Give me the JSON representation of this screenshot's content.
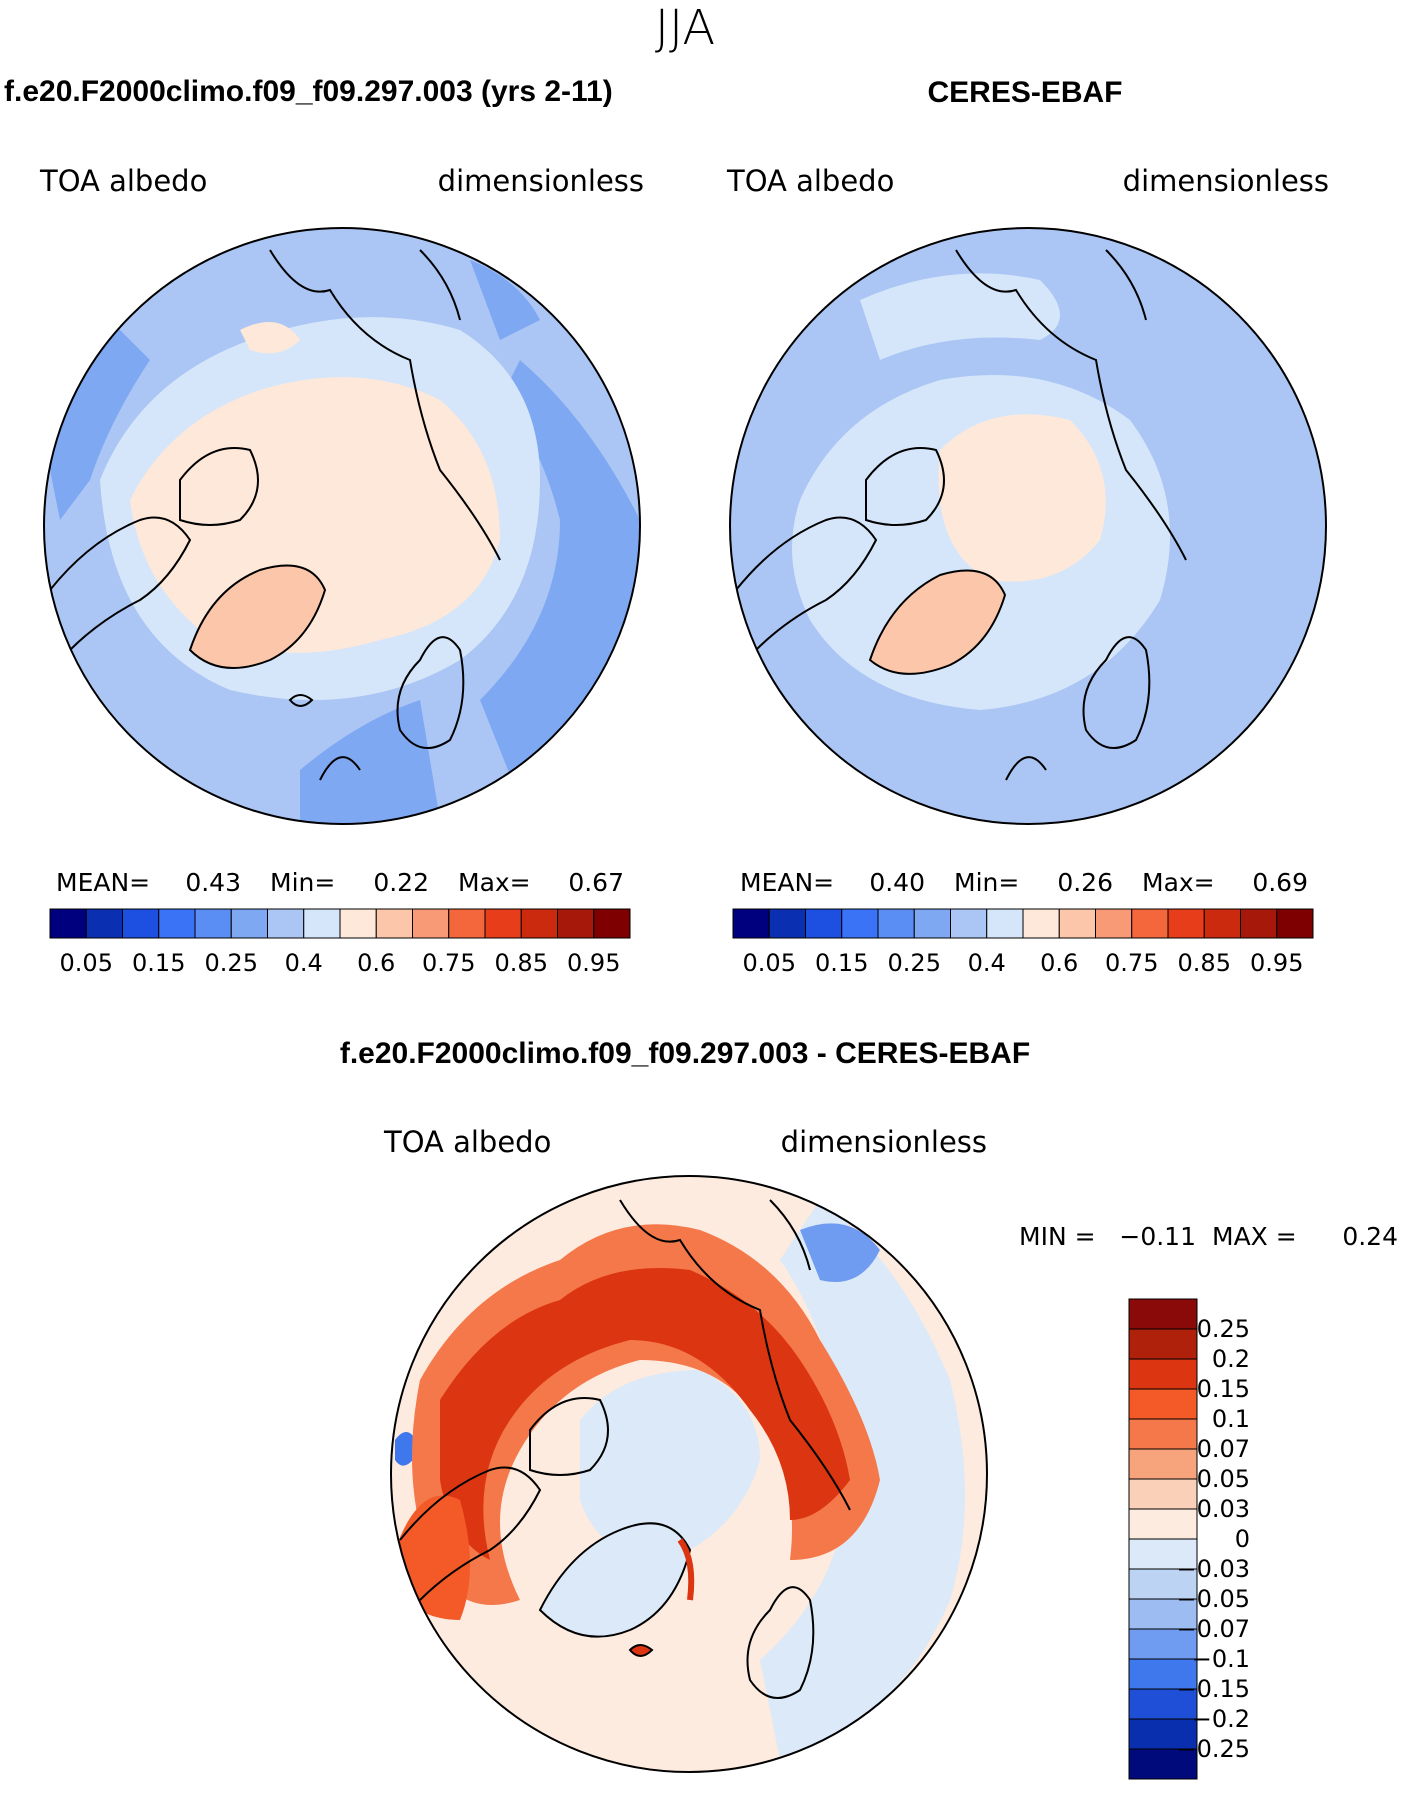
{
  "season": "JJA",
  "panels": [
    {
      "title": "f.e20.F2000climo.f09_f09.297.003 (yrs 2-11)",
      "left_label": "TOA albedo",
      "right_label": "dimensionless",
      "stats": {
        "mean_label": "MEAN=",
        "mean": "0.43",
        "min_label": "Min=",
        "min": "0.22",
        "max_label": "Max=",
        "max": "0.67"
      }
    },
    {
      "title": "CERES-EBAF",
      "left_label": "TOA albedo",
      "right_label": "dimensionless",
      "stats": {
        "mean_label": "MEAN=",
        "mean": "0.40",
        "min_label": "Min=",
        "min": "0.26",
        "max_label": "Max=",
        "max": "0.69"
      }
    }
  ],
  "diff_panel": {
    "title": "f.e20.F2000climo.f09_f09.297.003 - CERES-EBAF",
    "left_label": "TOA albedo",
    "right_label": "dimensionless",
    "min_label": "MIN =",
    "min": "−0.11",
    "max_label": "MAX =",
    "max": "0.24"
  },
  "colorbar": {
    "colors": [
      "#00007f",
      "#0a2fb0",
      "#1d4fe0",
      "#3a73f5",
      "#5a8ef5",
      "#7fa8f3",
      "#abc6f4",
      "#d6e6fa",
      "#fde8da",
      "#fbc6aa",
      "#f89a76",
      "#f4673d",
      "#e83d1a",
      "#cc2a0e",
      "#a6180a",
      "#7e0000"
    ],
    "labels": [
      "0.05",
      "0.15",
      "0.25",
      "0.4",
      "0.6",
      "0.75",
      "0.85",
      "0.95"
    ]
  },
  "diff_colorbar": {
    "colors": [
      "#8a0a0a",
      "#b0210c",
      "#dc3511",
      "#f35a28",
      "#f5784a",
      "#f7a37c",
      "#fad0b8",
      "#fdebe0",
      "#dbe9f8",
      "#bcd3f4",
      "#9dbcf1",
      "#6f9bf0",
      "#3f77ec",
      "#1f4fd6",
      "#0a2fae",
      "#000a7a"
    ],
    "labels": [
      "0.25",
      "0.2",
      "0.15",
      "0.1",
      "0.07",
      "0.05",
      "0.03",
      "0",
      "−0.03",
      "−0.05",
      "−0.07",
      "−0.1",
      "−0.15",
      "−0.2",
      "−0.25"
    ]
  }
}
